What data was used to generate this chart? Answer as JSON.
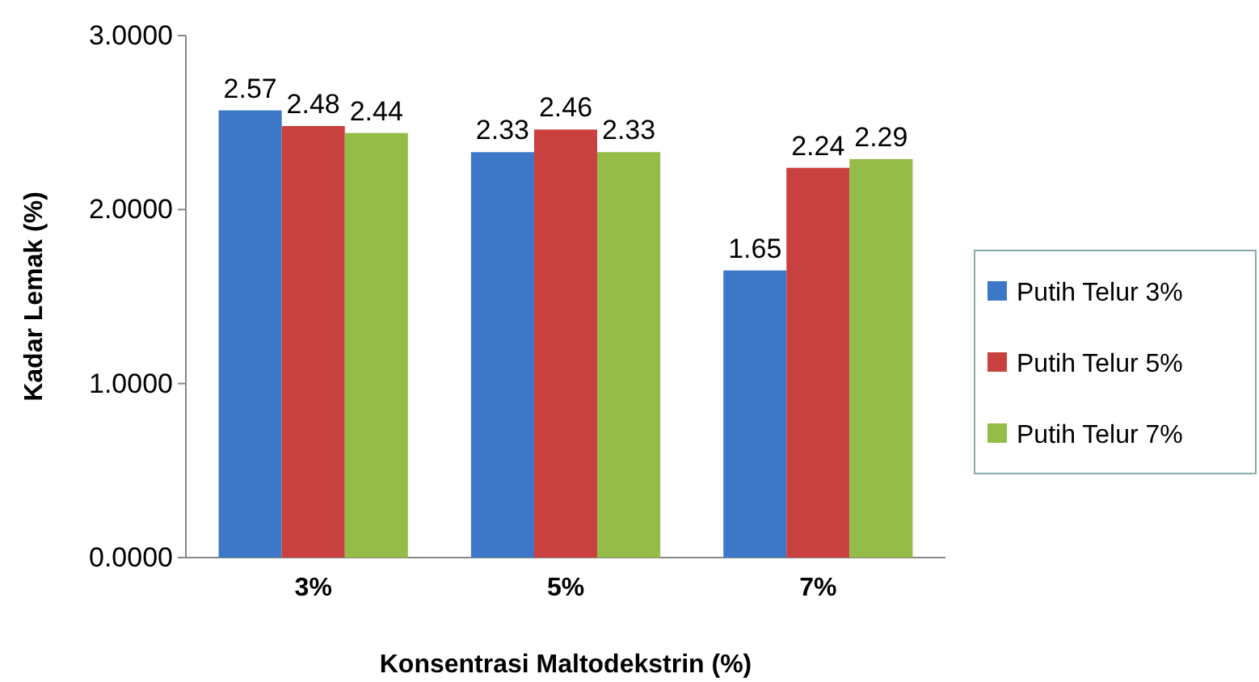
{
  "chart_data": {
    "type": "bar",
    "xlabel": "Konsentrasi Maltodekstrin (%)",
    "ylabel": "Kadar Lemak (%)",
    "categories": [
      "3%",
      "5%",
      "7%"
    ],
    "series": [
      {
        "name": "Putih Telur 3%",
        "color": "#3d78c8",
        "values": [
          2.57,
          2.33,
          1.65
        ]
      },
      {
        "name": "Putih Telur 5%",
        "color": "#c9413f",
        "values": [
          2.48,
          2.46,
          2.24
        ]
      },
      {
        "name": "Putih Telur 7%",
        "color": "#95bb48",
        "values": [
          2.44,
          2.33,
          2.29
        ]
      }
    ],
    "ylim": [
      0,
      3
    ],
    "yticks": [
      {
        "value": 0,
        "label": "0.0000"
      },
      {
        "value": 1,
        "label": "1.0000"
      },
      {
        "value": 2,
        "label": "2.0000"
      },
      {
        "value": 3,
        "label": "3.0000"
      }
    ],
    "data_labels": true,
    "legend": "right"
  }
}
